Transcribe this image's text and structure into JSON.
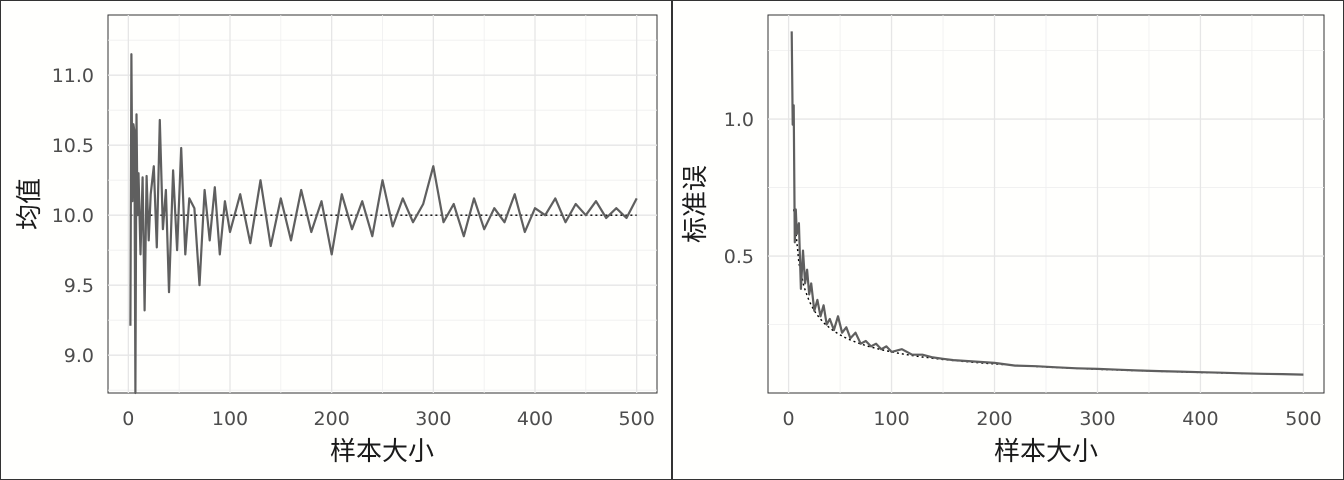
{
  "chart_data": [
    {
      "type": "line",
      "title": "",
      "xlabel": "样本大小",
      "ylabel": "均值",
      "xlim": [
        -20,
        520
      ],
      "ylim": [
        8.73,
        11.43
      ],
      "x_ticks": [
        0,
        100,
        200,
        300,
        400,
        500
      ],
      "x_tick_labels": [
        "0",
        "100",
        "200",
        "300",
        "400",
        "500"
      ],
      "y_ticks": [
        9.0,
        9.5,
        10.0,
        10.5,
        11.0
      ],
      "y_tick_labels": [
        "9.0",
        "9.5",
        "10.0",
        "10.5",
        "11.0"
      ],
      "grid": true,
      "reference_line": {
        "y": 10.0,
        "style": "dotted"
      },
      "series": [
        {
          "x": [
            2,
            3,
            4,
            5,
            6,
            7,
            8,
            9,
            10,
            12,
            14,
            16,
            18,
            20,
            22,
            25,
            28,
            31,
            34,
            37,
            40,
            44,
            48,
            52,
            56,
            60,
            65,
            70,
            75,
            80,
            85,
            90,
            95,
            100,
            110,
            120,
            130,
            140,
            150,
            160,
            170,
            180,
            190,
            200,
            210,
            220,
            230,
            240,
            250,
            260,
            270,
            280,
            290,
            300,
            310,
            320,
            330,
            340,
            350,
            360,
            370,
            380,
            390,
            400,
            410,
            420,
            430,
            440,
            450,
            460,
            470,
            480,
            490,
            500
          ],
          "values": [
            9.21,
            11.15,
            10.1,
            10.65,
            10.6,
            8.73,
            10.72,
            10.0,
            10.3,
            9.72,
            10.27,
            9.32,
            10.28,
            9.82,
            10.15,
            10.35,
            9.77,
            10.68,
            9.9,
            10.18,
            9.45,
            10.32,
            9.75,
            10.48,
            9.72,
            10.12,
            10.05,
            9.5,
            10.18,
            9.82,
            10.2,
            9.72,
            10.1,
            9.88,
            10.15,
            9.8,
            10.25,
            9.78,
            10.12,
            9.82,
            10.18,
            9.88,
            10.1,
            9.72,
            10.15,
            9.9,
            10.1,
            9.85,
            10.25,
            9.92,
            10.12,
            9.95,
            10.08,
            10.35,
            9.95,
            10.08,
            9.85,
            10.12,
            9.9,
            10.05,
            9.95,
            10.15,
            9.88,
            10.05,
            10.0,
            10.12,
            9.95,
            10.08,
            10.0,
            10.1,
            9.98,
            10.05,
            9.98,
            10.12
          ]
        }
      ]
    },
    {
      "type": "line",
      "title": "",
      "xlabel": "样本大小",
      "ylabel": "标准误",
      "xlim": [
        -20,
        520
      ],
      "ylim": [
        0.0,
        1.38
      ],
      "x_ticks": [
        0,
        100,
        200,
        300,
        400,
        500
      ],
      "x_tick_labels": [
        "0",
        "100",
        "200",
        "300",
        "400",
        "500"
      ],
      "y_ticks": [
        0.5,
        1.0
      ],
      "y_tick_labels": [
        "0.5",
        "1.0"
      ],
      "grid": true,
      "reference_curve": {
        "formula": "1.5/sqrt(n)",
        "style": "dotted"
      },
      "series": [
        {
          "x": [
            3,
            4,
            5,
            6,
            7,
            8,
            10,
            12,
            14,
            16,
            18,
            20,
            22,
            25,
            28,
            31,
            34,
            37,
            40,
            44,
            48,
            52,
            56,
            60,
            65,
            70,
            75,
            80,
            85,
            90,
            95,
            100,
            110,
            120,
            130,
            140,
            150,
            160,
            180,
            200,
            220,
            240,
            260,
            280,
            300,
            320,
            340,
            360,
            380,
            400,
            420,
            440,
            460,
            480,
            500
          ],
          "values": [
            1.32,
            0.98,
            1.05,
            0.55,
            0.67,
            0.58,
            0.62,
            0.38,
            0.52,
            0.4,
            0.45,
            0.36,
            0.4,
            0.3,
            0.34,
            0.28,
            0.32,
            0.25,
            0.27,
            0.23,
            0.28,
            0.22,
            0.24,
            0.2,
            0.22,
            0.18,
            0.19,
            0.17,
            0.18,
            0.16,
            0.17,
            0.15,
            0.16,
            0.14,
            0.14,
            0.13,
            0.125,
            0.12,
            0.115,
            0.11,
            0.1,
            0.098,
            0.094,
            0.09,
            0.088,
            0.085,
            0.082,
            0.08,
            0.078,
            0.076,
            0.074,
            0.072,
            0.07,
            0.069,
            0.067
          ]
        }
      ]
    }
  ]
}
